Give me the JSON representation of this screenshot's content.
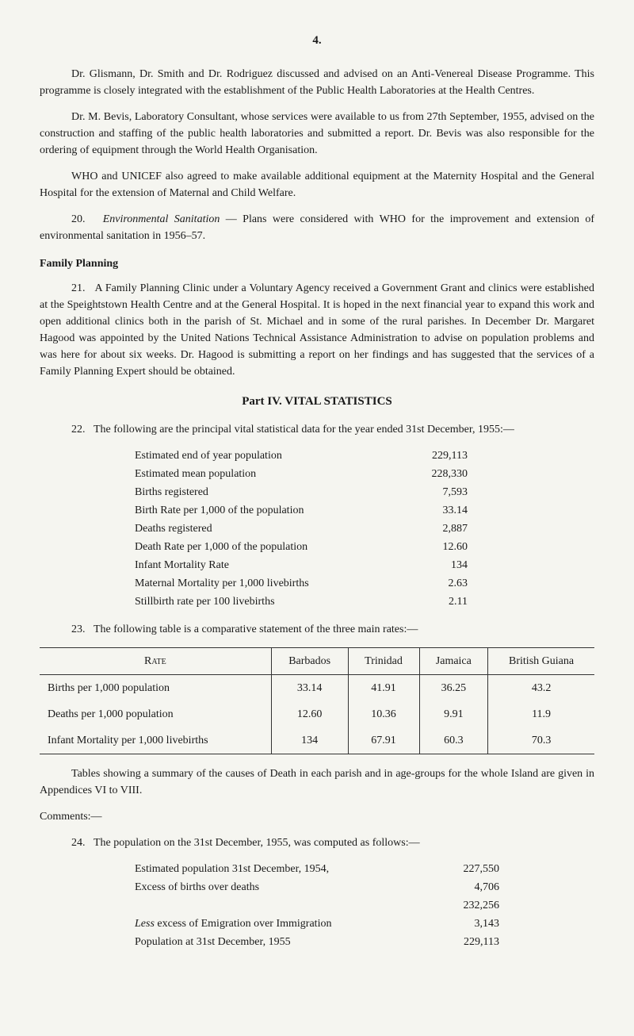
{
  "page_number": "4.",
  "para1": "Dr. Glismann, Dr. Smith and Dr. Rodriguez discussed and advised on an Anti-Venereal Disease Programme. This programme is closely integrated with the establishment of the Public Health Laboratories at the Health Centres.",
  "para2": "Dr. M. Bevis, Laboratory Consultant, whose services were available to us from 27th September, 1955, advised on the construction and staffing of the public health laboratories and submitted a report. Dr. Bevis was also responsible for the ordering of equipment through the World Health Organisation.",
  "para3": "WHO and UNICEF also agreed to make available additional equipment at the Maternity Hospital and the General Hospital for the extension of Maternal and Child Welfare.",
  "para4_num": "20.",
  "para4_title": "Environmental Sanitation",
  "para4_text": " — Plans were considered with WHO for the improvement and extension of environmental sanitation in 1956–57.",
  "family_planning_heading": "Family Planning",
  "para5_num": "21.",
  "para5_text": "A Family Planning Clinic under a Voluntary Agency received a Government Grant and clinics were established at the Speightstown Health Centre and at the General Hospital. It is hoped in the next financial year to expand this work and open additional clinics both in the parish of St. Michael and in some of the rural parishes. In December Dr. Margaret Hagood was appointed by the United Nations Technical Assistance Administration to advise on population problems and was here for about six weeks. Dr. Hagood is submitting a report on her findings and has suggested that the services of a Family Planning Expert should be obtained.",
  "part_heading": "Part IV.  VITAL STATISTICS",
  "para6_num": "22.",
  "para6_text": "The following are the principal vital statistical data for the year ended 31st December, 1955:—",
  "stats": [
    {
      "label": "Estimated end of year population",
      "value": "229,113"
    },
    {
      "label": "Estimated mean population",
      "value": "228,330"
    },
    {
      "label": "Births registered",
      "value": "7,593"
    },
    {
      "label": "Birth Rate per 1,000 of the population",
      "value": "33.14"
    },
    {
      "label": "Deaths registered",
      "value": "2,887"
    },
    {
      "label": "Death Rate per 1,000 of the population",
      "value": "12.60"
    },
    {
      "label": "Infant Mortality Rate",
      "value": "134"
    },
    {
      "label": "Maternal Mortality per 1,000 livebirths",
      "value": "2.63"
    },
    {
      "label": "Stillbirth rate per 100 livebirths",
      "value": "2.11"
    }
  ],
  "para7_num": "23.",
  "para7_text": "The following table is a comparative statement of the three main rates:—",
  "table": {
    "columns": [
      "Rate",
      "Barbados",
      "Trinidad",
      "Jamaica",
      "British Guiana"
    ],
    "rows": [
      [
        "Births per 1,000 population",
        "33.14",
        "41.91",
        "36.25",
        "43.2"
      ],
      [
        "Deaths per 1,000 population",
        "12.60",
        "10.36",
        "9.91",
        "11.9"
      ],
      [
        "Infant Mortality per 1,000 livebirths",
        "134",
        "67.91",
        "60.3",
        "70.3"
      ]
    ]
  },
  "para8": "Tables showing a summary of the causes of Death in each parish and in age-groups for the whole Island are given in Appendices VI to VIII.",
  "comments_heading": "Comments:—",
  "para9_num": "24.",
  "para9_text": "The population on the 31st December, 1955, was computed as follows:—",
  "pop": [
    {
      "label": "Estimated population 31st December, 1954,",
      "value": "227,550"
    },
    {
      "label": "Excess of births over deaths",
      "value": "4,706"
    },
    {
      "label": "",
      "value": "232,256"
    },
    {
      "label_prefix": "Less",
      "label": " excess of Emigration over Immigration",
      "value": "3,143"
    },
    {
      "label": "Population at 31st December, 1955",
      "value": "229,113"
    }
  ]
}
